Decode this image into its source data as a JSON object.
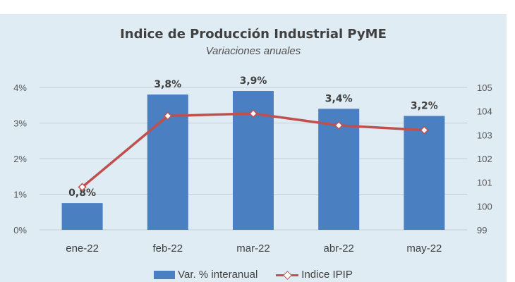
{
  "chart_data": {
    "type": "bar",
    "title": "Indice de Producción Industrial PyME",
    "subtitle": "Variaciones anuales",
    "categories": [
      "ene-22",
      "feb-22",
      "mar-22",
      "abr-22",
      "may-22"
    ],
    "series": [
      {
        "name": "Var. % interanual",
        "type": "bar",
        "axis": "left",
        "values": [
          0.75,
          3.8,
          3.9,
          3.4,
          3.2
        ],
        "labels": [
          "0,8%",
          "3,8%",
          "3,9%",
          "3,4%",
          "3,2%"
        ],
        "color": "#4a7fc1"
      },
      {
        "name": "Indice IPIP",
        "type": "line",
        "axis": "right",
        "values": [
          100.8,
          103.8,
          103.9,
          103.4,
          103.2
        ],
        "color": "#c0504d"
      }
    ],
    "y_left": {
      "ylim": [
        0,
        4
      ],
      "ticks": [
        "0%",
        "1%",
        "2%",
        "3%",
        "4%"
      ]
    },
    "y_right": {
      "ylim": [
        99,
        105
      ],
      "ticks": [
        "99",
        "100",
        "101",
        "102",
        "103",
        "104",
        "105"
      ]
    },
    "grid": true,
    "legend": "bottom"
  }
}
